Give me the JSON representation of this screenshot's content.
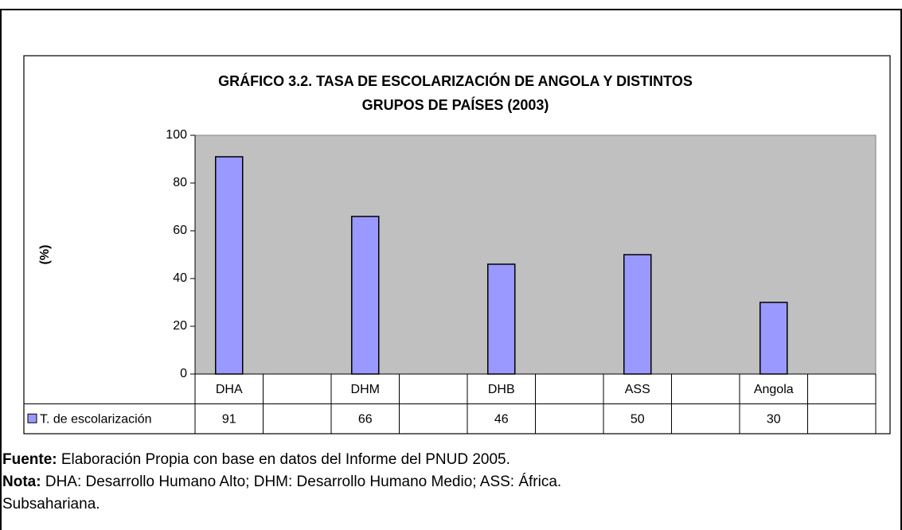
{
  "chart_data": {
    "type": "bar",
    "title": [
      "GRÁFICO 3.2. TASA DE ESCOLARIZACIÓN DE ANGOLA Y  DISTINTOS",
      "GRUPOS DE PAÍSES (2003)"
    ],
    "ylabel": "(%)",
    "categories": [
      "DHA",
      null,
      "DHM",
      null,
      "DHB",
      null,
      "ASS",
      null,
      "Angola",
      null
    ],
    "series": [
      {
        "name": "T. de escolarización",
        "color": "#9999ff",
        "values": [
          91,
          null,
          66,
          null,
          46,
          null,
          50,
          null,
          30,
          null
        ]
      }
    ],
    "ylim": [
      0,
      100
    ],
    "yticks": [
      0,
      20,
      40,
      60,
      80,
      100
    ],
    "grid": false,
    "plot_background": "#c0c0c0"
  },
  "notes": [
    {
      "label": "Fuente:",
      "text": " Elaboración Propia con base en datos del Informe del PNUD 2005."
    },
    {
      "label": "Nota:",
      "text": " DHA: Desarrollo Humano Alto; DHM: Desarrollo Humano Medio; ASS: África."
    },
    {
      "text": "Subsahariana."
    }
  ]
}
